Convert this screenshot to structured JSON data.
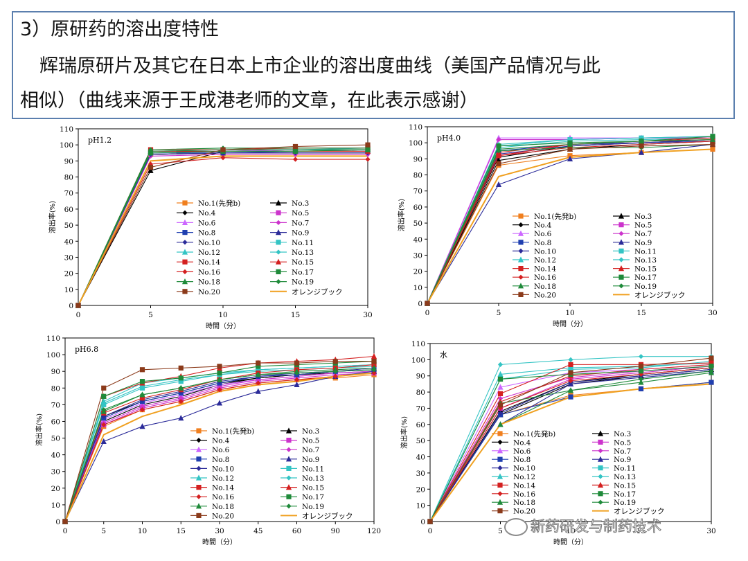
{
  "header": {
    "line1": "3）原研药的溶出度特性",
    "line2": "辉瑞原研片及其它在日本上市企业的溶出度曲线（美国产品情况与此",
    "line3": "相似）（曲线来源于王成港老师的文章，在此表示感谢）"
  },
  "watermark": "新药研发与制药技术",
  "legend_labels": [
    "No.1(先発b)",
    "No.3",
    "No.4",
    "No.5",
    "No.6",
    "No.7",
    "No.8",
    "No.9",
    "No.10",
    "No.11",
    "No.12",
    "No.13",
    "No.14",
    "No.15",
    "No.16",
    "No.17",
    "No.18",
    "No.19",
    "No.20",
    "オレンジブック"
  ],
  "series_style": [
    {
      "color": "#f07f1e",
      "marker": "square"
    },
    {
      "color": "#000000",
      "marker": "triangle"
    },
    {
      "color": "#000000",
      "marker": "diamond"
    },
    {
      "color": "#cc33cc",
      "marker": "square"
    },
    {
      "color": "#cc66ff",
      "marker": "triangle"
    },
    {
      "color": "#cc33cc",
      "marker": "diamond"
    },
    {
      "color": "#1f3fb0",
      "marker": "square"
    },
    {
      "color": "#2b2b99",
      "marker": "triangle"
    },
    {
      "color": "#2b2b99",
      "marker": "diamond"
    },
    {
      "color": "#33c4c4",
      "marker": "square"
    },
    {
      "color": "#33c4c4",
      "marker": "triangle"
    },
    {
      "color": "#33c4c4",
      "marker": "diamond"
    },
    {
      "color": "#d42020",
      "marker": "square"
    },
    {
      "color": "#d42020",
      "marker": "triangle"
    },
    {
      "color": "#d42020",
      "marker": "diamond"
    },
    {
      "color": "#1f8a3a",
      "marker": "square"
    },
    {
      "color": "#1f8a3a",
      "marker": "triangle"
    },
    {
      "color": "#1f8a3a",
      "marker": "diamond"
    },
    {
      "color": "#8b3a1a",
      "marker": "square"
    },
    {
      "color": "#f0a020",
      "marker": "none"
    }
  ],
  "chart_data": [
    {
      "type": "line",
      "title": "pH1.2",
      "xlabel": "時間（分）",
      "ylabel": "溶出率(%)",
      "x": [
        "0",
        "5",
        "10",
        "15",
        "30"
      ],
      "ylim": [
        0,
        110
      ],
      "yticks": [
        0,
        10,
        20,
        30,
        40,
        50,
        60,
        70,
        80,
        90,
        100,
        110
      ],
      "series": [
        {
          "name": "No.1(先発b)",
          "values": [
            0,
            94,
            95,
            96,
            97
          ]
        },
        {
          "name": "No.3",
          "values": [
            0,
            84,
            96,
            97,
            97
          ]
        },
        {
          "name": "No.4",
          "values": [
            0,
            94,
            95,
            95,
            95
          ]
        },
        {
          "name": "No.5",
          "values": [
            0,
            95,
            96,
            96,
            96
          ]
        },
        {
          "name": "No.6",
          "values": [
            0,
            96,
            96,
            97,
            97
          ]
        },
        {
          "name": "No.7",
          "values": [
            0,
            93,
            94,
            94,
            94
          ]
        },
        {
          "name": "No.8",
          "values": [
            0,
            95,
            95,
            96,
            96
          ]
        },
        {
          "name": "No.9",
          "values": [
            0,
            95,
            96,
            96,
            96
          ]
        },
        {
          "name": "No.10",
          "values": [
            0,
            94,
            95,
            95,
            95
          ]
        },
        {
          "name": "No.11",
          "values": [
            0,
            96,
            97,
            97,
            98
          ]
        },
        {
          "name": "No.12",
          "values": [
            0,
            95,
            96,
            96,
            96
          ]
        },
        {
          "name": "No.13",
          "values": [
            0,
            96,
            97,
            97,
            97
          ]
        },
        {
          "name": "No.14",
          "values": [
            0,
            97,
            97,
            98,
            98
          ]
        },
        {
          "name": "No.15",
          "values": [
            0,
            96,
            96,
            96,
            96
          ]
        },
        {
          "name": "No.16",
          "values": [
            0,
            88,
            92,
            91,
            91
          ]
        },
        {
          "name": "No.17",
          "values": [
            0,
            95,
            96,
            96,
            97
          ]
        },
        {
          "name": "No.18",
          "values": [
            0,
            96,
            97,
            97,
            97
          ]
        },
        {
          "name": "No.19",
          "values": [
            0,
            97,
            98,
            98,
            98
          ]
        },
        {
          "name": "No.20",
          "values": [
            0,
            86,
            97,
            99,
            100
          ]
        },
        {
          "name": "オレンジブック",
          "values": [
            0,
            90,
            93,
            93,
            93
          ]
        }
      ]
    },
    {
      "type": "line",
      "title": "pH4.0",
      "xlabel": "時間（分）",
      "ylabel": "溶出率(%)",
      "x": [
        "0",
        "5",
        "10",
        "15",
        "30"
      ],
      "ylim": [
        0,
        110
      ],
      "yticks": [
        0,
        10,
        20,
        30,
        40,
        50,
        60,
        70,
        80,
        90,
        100,
        110
      ],
      "series": [
        {
          "name": "No.1(先発b)",
          "values": [
            0,
            86,
            92,
            94,
            96
          ]
        },
        {
          "name": "No.3",
          "values": [
            0,
            89,
            96,
            99,
            101
          ]
        },
        {
          "name": "No.4",
          "values": [
            0,
            91,
            98,
            100,
            102
          ]
        },
        {
          "name": "No.5",
          "values": [
            0,
            92,
            99,
            100,
            102
          ]
        },
        {
          "name": "No.6",
          "values": [
            0,
            103,
            103,
            103,
            104
          ]
        },
        {
          "name": "No.7",
          "values": [
            0,
            102,
            102,
            103,
            103
          ]
        },
        {
          "name": "No.8",
          "values": [
            0,
            95,
            99,
            100,
            101
          ]
        },
        {
          "name": "No.9",
          "values": [
            0,
            74,
            90,
            94,
            99
          ]
        },
        {
          "name": "No.10",
          "values": [
            0,
            93,
            98,
            100,
            102
          ]
        },
        {
          "name": "No.11",
          "values": [
            0,
            98,
            102,
            103,
            104
          ]
        },
        {
          "name": "No.12",
          "values": [
            0,
            97,
            101,
            102,
            103
          ]
        },
        {
          "name": "No.13",
          "values": [
            0,
            99,
            102,
            103,
            104
          ]
        },
        {
          "name": "No.14",
          "values": [
            0,
            92,
            99,
            101,
            103
          ]
        },
        {
          "name": "No.15",
          "values": [
            0,
            94,
            99,
            101,
            102
          ]
        },
        {
          "name": "No.16",
          "values": [
            0,
            92,
            97,
            99,
            101
          ]
        },
        {
          "name": "No.17",
          "values": [
            0,
            98,
            100,
            101,
            104
          ]
        },
        {
          "name": "No.18",
          "values": [
            0,
            96,
            99,
            101,
            102
          ]
        },
        {
          "name": "No.19",
          "values": [
            0,
            95,
            97,
            97,
            99
          ]
        },
        {
          "name": "No.20",
          "values": [
            0,
            87,
            96,
            98,
            99
          ]
        },
        {
          "name": "オレンジブック",
          "values": [
            0,
            79,
            91,
            94,
            96
          ]
        }
      ]
    },
    {
      "type": "line",
      "title": "pH6.8",
      "xlabel": "時間（分）",
      "ylabel": "溶出率(%)",
      "x": [
        "0",
        "5",
        "10",
        "15",
        "30",
        "45",
        "60",
        "90",
        "120"
      ],
      "ylim": [
        0,
        110
      ],
      "yticks": [
        0,
        10,
        20,
        30,
        40,
        50,
        60,
        70,
        80,
        90,
        100,
        110
      ],
      "series": [
        {
          "name": "No.1(先発b)",
          "values": [
            0,
            57,
            67,
            72,
            79,
            83,
            85,
            86,
            88
          ]
        },
        {
          "name": "No.3",
          "values": [
            0,
            60,
            70,
            75,
            82,
            86,
            88,
            89,
            90
          ]
        },
        {
          "name": "No.4",
          "values": [
            0,
            63,
            72,
            77,
            83,
            86,
            88,
            90,
            91
          ]
        },
        {
          "name": "No.5",
          "values": [
            0,
            58,
            68,
            73,
            80,
            84,
            86,
            88,
            89
          ]
        },
        {
          "name": "No.6",
          "values": [
            0,
            61,
            71,
            76,
            82,
            85,
            87,
            89,
            90
          ]
        },
        {
          "name": "No.7",
          "values": [
            0,
            59,
            69,
            74,
            81,
            85,
            87,
            89,
            90
          ]
        },
        {
          "name": "No.8",
          "values": [
            0,
            62,
            72,
            77,
            83,
            87,
            88,
            90,
            91
          ]
        },
        {
          "name": "No.9",
          "values": [
            0,
            48,
            57,
            62,
            71,
            78,
            82,
            87,
            90
          ]
        },
        {
          "name": "No.10",
          "values": [
            0,
            63,
            73,
            78,
            84,
            87,
            89,
            90,
            92
          ]
        },
        {
          "name": "No.11",
          "values": [
            0,
            70,
            80,
            84,
            88,
            91,
            92,
            93,
            94
          ]
        },
        {
          "name": "No.12",
          "values": [
            0,
            72,
            83,
            86,
            89,
            91,
            92,
            93,
            94
          ]
        },
        {
          "name": "No.13",
          "values": [
            0,
            71,
            81,
            85,
            88,
            90,
            91,
            92,
            93
          ]
        },
        {
          "name": "No.14",
          "values": [
            0,
            65,
            74,
            79,
            85,
            89,
            91,
            92,
            94
          ]
        },
        {
          "name": "No.15",
          "values": [
            0,
            75,
            83,
            87,
            92,
            95,
            96,
            97,
            99
          ]
        },
        {
          "name": "No.16",
          "values": [
            0,
            58,
            67,
            72,
            79,
            83,
            85,
            87,
            89
          ]
        },
        {
          "name": "No.17",
          "values": [
            0,
            75,
            84,
            86,
            89,
            93,
            94,
            95,
            96
          ]
        },
        {
          "name": "No.18",
          "values": [
            0,
            66,
            76,
            80,
            85,
            88,
            90,
            91,
            92
          ]
        },
        {
          "name": "No.19",
          "values": [
            0,
            67,
            76,
            80,
            85,
            88,
            89,
            90,
            91
          ]
        },
        {
          "name": "No.20",
          "values": [
            0,
            80,
            91,
            92,
            93,
            95,
            95,
            96,
            96
          ]
        },
        {
          "name": "オレンジブック",
          "values": [
            0,
            52,
            63,
            70,
            78,
            82,
            84,
            87,
            89
          ]
        }
      ]
    },
    {
      "type": "line",
      "title": "水",
      "xlabel": "時間（分）",
      "ylabel": "溶出率(%)",
      "x": [
        "0",
        "5",
        "10",
        "15",
        "30"
      ],
      "ylim": [
        0,
        110
      ],
      "yticks": [
        0,
        10,
        20,
        30,
        40,
        50,
        60,
        70,
        80,
        90,
        100,
        110
      ],
      "series": [
        {
          "name": "No.1(先発b)",
          "values": [
            0,
            66,
            78,
            82,
            86
          ]
        },
        {
          "name": "No.3",
          "values": [
            0,
            66,
            85,
            90,
            94
          ]
        },
        {
          "name": "No.4",
          "values": [
            0,
            68,
            86,
            91,
            95
          ]
        },
        {
          "name": "No.5",
          "values": [
            0,
            70,
            88,
            92,
            96
          ]
        },
        {
          "name": "No.6",
          "values": [
            0,
            83,
            92,
            94,
            97
          ]
        },
        {
          "name": "No.7",
          "values": [
            0,
            76,
            89,
            93,
            96
          ]
        },
        {
          "name": "No.8",
          "values": [
            0,
            66,
            77,
            82,
            86
          ]
        },
        {
          "name": "No.9",
          "values": [
            0,
            60,
            85,
            89,
            93
          ]
        },
        {
          "name": "No.10",
          "values": [
            0,
            67,
            86,
            90,
            94
          ]
        },
        {
          "name": "No.11",
          "values": [
            0,
            88,
            94,
            95,
            99
          ]
        },
        {
          "name": "No.12",
          "values": [
            0,
            91,
            95,
            96,
            98
          ]
        },
        {
          "name": "No.13",
          "values": [
            0,
            97,
            100,
            102,
            102
          ]
        },
        {
          "name": "No.14",
          "values": [
            0,
            79,
            97,
            97,
            98
          ]
        },
        {
          "name": "No.15",
          "values": [
            0,
            74,
            90,
            94,
            97
          ]
        },
        {
          "name": "No.16",
          "values": [
            0,
            70,
            87,
            91,
            95
          ]
        },
        {
          "name": "No.17",
          "values": [
            0,
            88,
            91,
            93,
            96
          ]
        },
        {
          "name": "No.18",
          "values": [
            0,
            60,
            81,
            86,
            92
          ]
        },
        {
          "name": "No.19",
          "values": [
            0,
            73,
            81,
            88,
            93
          ]
        },
        {
          "name": "No.20",
          "values": [
            0,
            72,
            92,
            96,
            101
          ]
        },
        {
          "name": "オレンジブック",
          "values": [
            0,
            60,
            77,
            82,
            85
          ]
        }
      ]
    }
  ]
}
